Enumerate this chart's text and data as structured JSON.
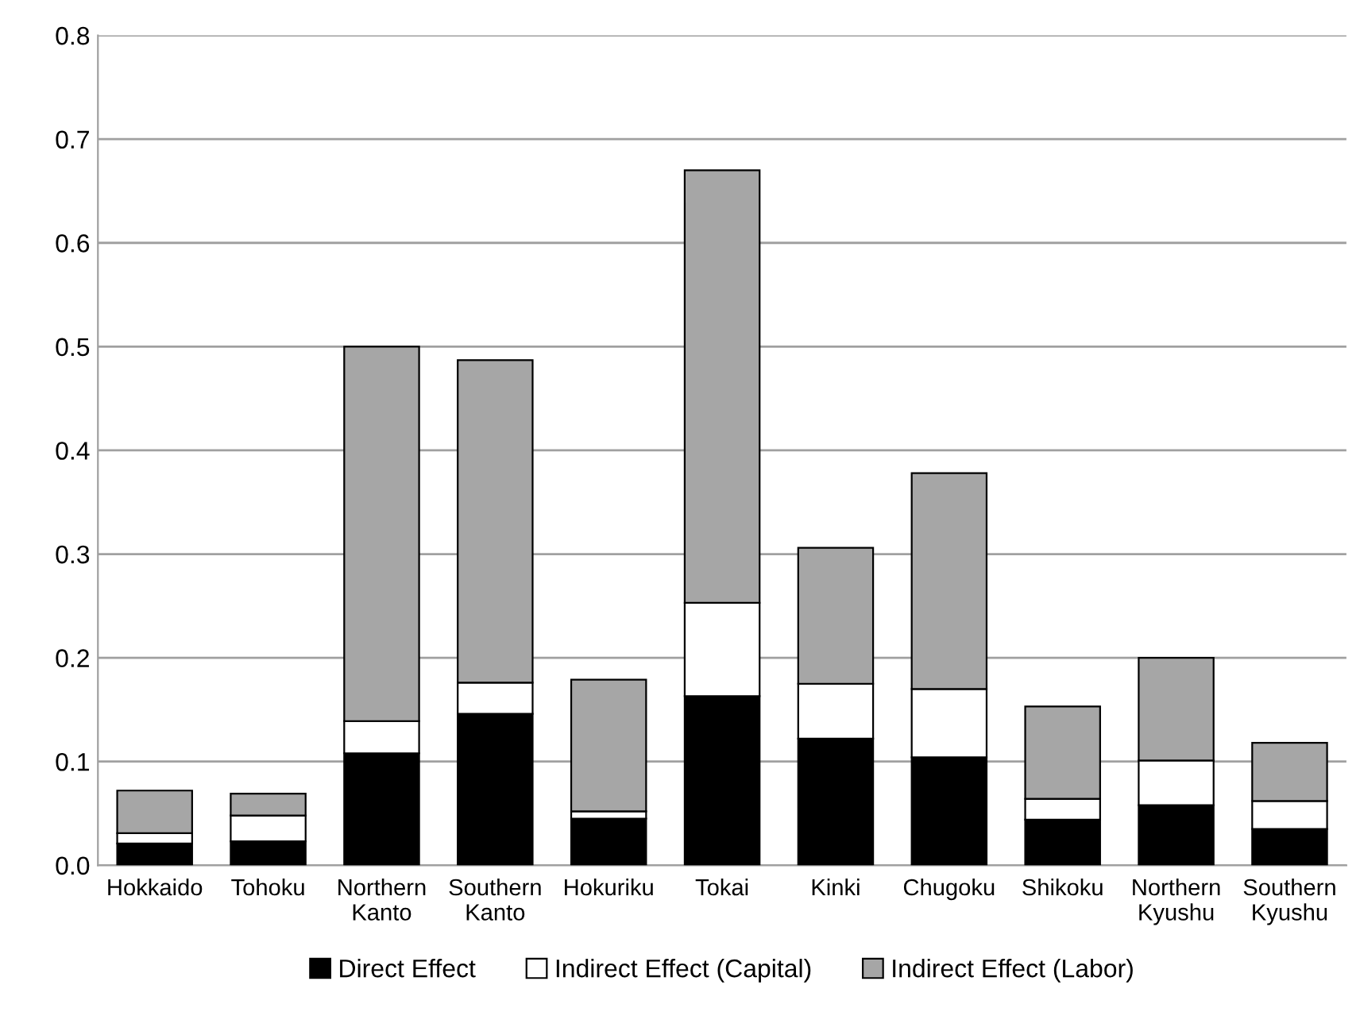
{
  "chart_data": {
    "type": "bar",
    "stacked": true,
    "categories": [
      "Hokkaido",
      "Tohoku",
      "Northern\nKanto",
      "Southern\nKanto",
      "Hokuriku",
      "Tokai",
      "Kinki",
      "Chugoku",
      "Shikoku",
      "Northern\nKyushu",
      "Southern\nKyushu"
    ],
    "series": [
      {
        "name": "Direct Effect",
        "color": "#000000",
        "values": [
          0.021,
          0.023,
          0.108,
          0.146,
          0.045,
          0.163,
          0.122,
          0.104,
          0.044,
          0.058,
          0.035
        ]
      },
      {
        "name": "Indirect Effect (Capital)",
        "color": "#ffffff",
        "values": [
          0.01,
          0.025,
          0.031,
          0.03,
          0.007,
          0.09,
          0.053,
          0.066,
          0.02,
          0.043,
          0.027
        ]
      },
      {
        "name": "Indirect Effect (Labor)",
        "color": "#a6a6a6",
        "values": [
          0.041,
          0.021,
          0.361,
          0.311,
          0.127,
          0.417,
          0.131,
          0.208,
          0.089,
          0.099,
          0.056
        ]
      }
    ],
    "ylim": [
      0,
      0.8
    ],
    "yticks": [
      {
        "value": 0,
        "label": "0.0"
      },
      0.1,
      0.2,
      0.3,
      0.4,
      0.5,
      0.6,
      0.7,
      0.8
    ],
    "grid": "y",
    "legend": "bottom"
  }
}
